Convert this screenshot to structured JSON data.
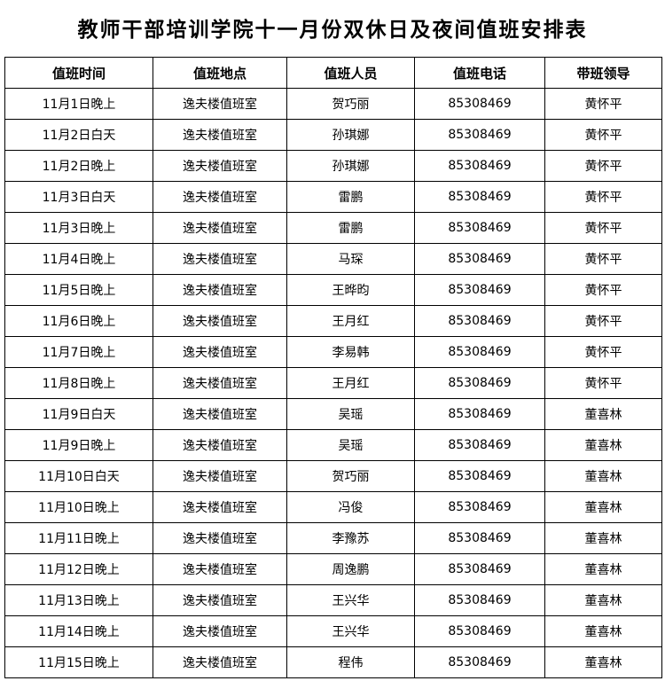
{
  "title": "教师干部培训学院十一月份双休日及夜间值班安排表",
  "headers": [
    "值班时间",
    "值班地点",
    "值班人员",
    "值班电话",
    "带班领导"
  ],
  "rows": [
    [
      "11月1日晚上",
      "逸夫楼值班室",
      "贺巧丽",
      "85308469",
      "黄怀平"
    ],
    [
      "11月2日白天",
      "逸夫楼值班室",
      "孙琪娜",
      "85308469",
      "黄怀平"
    ],
    [
      "11月2日晚上",
      "逸夫楼值班室",
      "孙琪娜",
      "85308469",
      "黄怀平"
    ],
    [
      "11月3日白天",
      "逸夫楼值班室",
      "雷鹏",
      "85308469",
      "黄怀平"
    ],
    [
      "11月3日晚上",
      "逸夫楼值班室",
      "雷鹏",
      "85308469",
      "黄怀平"
    ],
    [
      "11月4日晚上",
      "逸夫楼值班室",
      "马琛",
      "85308469",
      "黄怀平"
    ],
    [
      "11月5日晚上",
      "逸夫楼值班室",
      "王晔昀",
      "85308469",
      "黄怀平"
    ],
    [
      "11月6日晚上",
      "逸夫楼值班室",
      "王月红",
      "85308469",
      "黄怀平"
    ],
    [
      "11月7日晚上",
      "逸夫楼值班室",
      "李易韩",
      "85308469",
      "黄怀平"
    ],
    [
      "11月8日晚上",
      "逸夫楼值班室",
      "王月红",
      "85308469",
      "黄怀平"
    ],
    [
      "11月9日白天",
      "逸夫楼值班室",
      "吴瑶",
      "85308469",
      "董喜林"
    ],
    [
      "11月9日晚上",
      "逸夫楼值班室",
      "吴瑶",
      "85308469",
      "董喜林"
    ],
    [
      "11月10日白天",
      "逸夫楼值班室",
      "贺巧丽",
      "85308469",
      "董喜林"
    ],
    [
      "11月10日晚上",
      "逸夫楼值班室",
      "冯俊",
      "85308469",
      "董喜林"
    ],
    [
      "11月11日晚上",
      "逸夫楼值班室",
      "李豫苏",
      "85308469",
      "董喜林"
    ],
    [
      "11月12日晚上",
      "逸夫楼值班室",
      "周逸鹏",
      "85308469",
      "董喜林"
    ],
    [
      "11月13日晚上",
      "逸夫楼值班室",
      "王兴华",
      "85308469",
      "董喜林"
    ],
    [
      "11月14日晚上",
      "逸夫楼值班室",
      "王兴华",
      "85308469",
      "董喜林"
    ],
    [
      "11月15日晚上",
      "逸夫楼值班室",
      "程伟",
      "85308469",
      "董喜林"
    ]
  ]
}
